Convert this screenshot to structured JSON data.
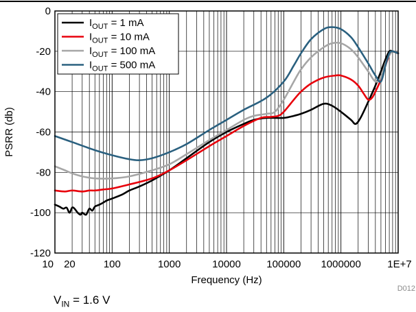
{
  "chart_data": {
    "type": "line",
    "title": "",
    "xlabel": "Frequency (Hz)",
    "ylabel": "PSRR (db)",
    "xscale": "log",
    "xlim": [
      10,
      10000000
    ],
    "ylim": [
      -120,
      0
    ],
    "grid": true,
    "legend_position": "top-left",
    "x_tick_labels": [
      "10",
      "20",
      "100",
      "1000",
      "10000",
      "100000",
      "1000000",
      "1E+7"
    ],
    "x_tick_values": [
      10,
      20,
      100,
      1000,
      10000,
      100000,
      1000000,
      10000000
    ],
    "y_ticks": [
      0,
      -20,
      -40,
      -60,
      -80,
      -100,
      -120
    ],
    "series": [
      {
        "name": "IOUT = 1 mA",
        "label_main": "I",
        "label_sub": "OUT",
        "label_rest": " = 1 mA",
        "color": "#000000",
        "points": [
          [
            10,
            -96
          ],
          [
            12,
            -97
          ],
          [
            14,
            -98
          ],
          [
            16,
            -97.5
          ],
          [
            18,
            -100
          ],
          [
            20,
            -97.5
          ],
          [
            22,
            -98
          ],
          [
            25,
            -100
          ],
          [
            28,
            -101
          ],
          [
            30,
            -100
          ],
          [
            35,
            -101
          ],
          [
            40,
            -98
          ],
          [
            45,
            -99
          ],
          [
            50,
            -97
          ],
          [
            60,
            -96
          ],
          [
            70,
            -95
          ],
          [
            80,
            -94
          ],
          [
            100,
            -93
          ],
          [
            150,
            -91
          ],
          [
            200,
            -89
          ],
          [
            300,
            -87
          ],
          [
            500,
            -84
          ],
          [
            1000,
            -79
          ],
          [
            2000,
            -73
          ],
          [
            5000,
            -65
          ],
          [
            10000,
            -60
          ],
          [
            20000,
            -56
          ],
          [
            30000,
            -54
          ],
          [
            50000,
            -53
          ],
          [
            100000,
            -53
          ],
          [
            150000,
            -52
          ],
          [
            200000,
            -51
          ],
          [
            300000,
            -49
          ],
          [
            500000,
            -46
          ],
          [
            700000,
            -47
          ],
          [
            1000000,
            -50
          ],
          [
            1500000,
            -54
          ],
          [
            1800000,
            -56
          ],
          [
            2200000,
            -53
          ],
          [
            3000000,
            -45
          ],
          [
            4000000,
            -37
          ],
          [
            5000000,
            -30
          ],
          [
            6000000,
            -24
          ],
          [
            7000000,
            -20
          ],
          [
            8000000,
            -20
          ],
          [
            10000000,
            -21
          ]
        ]
      },
      {
        "name": "IOUT = 10 mA",
        "label_main": "I",
        "label_sub": "OUT",
        "label_rest": " = 10 mA",
        "color": "#e8000b",
        "points": [
          [
            10,
            -89
          ],
          [
            15,
            -89.5
          ],
          [
            20,
            -89
          ],
          [
            30,
            -89.5
          ],
          [
            40,
            -89
          ],
          [
            50,
            -89
          ],
          [
            70,
            -88.5
          ],
          [
            100,
            -88
          ],
          [
            200,
            -86
          ],
          [
            500,
            -83
          ],
          [
            1000,
            -79
          ],
          [
            2000,
            -74
          ],
          [
            5000,
            -67
          ],
          [
            10000,
            -62
          ],
          [
            20000,
            -57
          ],
          [
            40000,
            -53
          ],
          [
            60000,
            -52.5
          ],
          [
            80000,
            -52
          ],
          [
            100000,
            -50
          ],
          [
            150000,
            -44
          ],
          [
            200000,
            -40
          ],
          [
            300000,
            -36
          ],
          [
            500000,
            -33
          ],
          [
            800000,
            -32
          ],
          [
            1000000,
            -32
          ],
          [
            1500000,
            -34
          ],
          [
            2000000,
            -37
          ],
          [
            2500000,
            -41
          ],
          [
            3000000,
            -44
          ],
          [
            3500000,
            -43
          ],
          [
            4000000,
            -40
          ],
          [
            5000000,
            -34
          ],
          [
            6000000,
            -27
          ],
          [
            7000000,
            -22
          ],
          [
            8000000,
            -20
          ],
          [
            10000000,
            -21
          ]
        ]
      },
      {
        "name": "IOUT = 100 mA",
        "label_main": "I",
        "label_sub": "OUT",
        "label_rest": " = 100 mA",
        "color": "#a6a6a6",
        "points": [
          [
            10,
            -77
          ],
          [
            15,
            -79
          ],
          [
            20,
            -80.5
          ],
          [
            30,
            -82
          ],
          [
            50,
            -83
          ],
          [
            100,
            -83
          ],
          [
            200,
            -82
          ],
          [
            500,
            -79
          ],
          [
            1000,
            -76
          ],
          [
            2000,
            -71
          ],
          [
            5000,
            -64
          ],
          [
            10000,
            -59
          ],
          [
            20000,
            -54
          ],
          [
            30000,
            -52
          ],
          [
            50000,
            -51
          ],
          [
            70000,
            -50
          ],
          [
            100000,
            -44
          ],
          [
            150000,
            -35
          ],
          [
            200000,
            -29
          ],
          [
            300000,
            -23
          ],
          [
            500000,
            -18
          ],
          [
            700000,
            -16
          ],
          [
            1000000,
            -16
          ],
          [
            1500000,
            -19
          ],
          [
            2000000,
            -23
          ],
          [
            3000000,
            -30
          ],
          [
            4000000,
            -35
          ],
          [
            5000000,
            -33
          ],
          [
            6000000,
            -26
          ],
          [
            7000000,
            -22
          ],
          [
            8000000,
            -20
          ],
          [
            10000000,
            -21
          ]
        ]
      },
      {
        "name": "IOUT = 500 mA",
        "label_main": "I",
        "label_sub": "OUT",
        "label_rest": " = 500 mA",
        "color": "#2a607f",
        "points": [
          [
            10,
            -62
          ],
          [
            20,
            -65
          ],
          [
            50,
            -69
          ],
          [
            100,
            -71.5
          ],
          [
            200,
            -73.5
          ],
          [
            300,
            -74
          ],
          [
            500,
            -73
          ],
          [
            1000,
            -70
          ],
          [
            2000,
            -66
          ],
          [
            5000,
            -59
          ],
          [
            10000,
            -54
          ],
          [
            20000,
            -49
          ],
          [
            50000,
            -43
          ],
          [
            100000,
            -35
          ],
          [
            150000,
            -27
          ],
          [
            200000,
            -21
          ],
          [
            300000,
            -14
          ],
          [
            500000,
            -9
          ],
          [
            700000,
            -8
          ],
          [
            1000000,
            -9
          ],
          [
            1500000,
            -13
          ],
          [
            2000000,
            -18
          ],
          [
            3000000,
            -26
          ],
          [
            4000000,
            -32
          ],
          [
            5000000,
            -35
          ],
          [
            6000000,
            -27
          ],
          [
            7000000,
            -21
          ],
          [
            8000000,
            -20
          ],
          [
            10000000,
            -21
          ]
        ]
      }
    ]
  },
  "figure_id": "D012",
  "note": {
    "vin_main": "V",
    "vin_sub": "IN",
    "vin_rest": " = 1.6 V"
  }
}
